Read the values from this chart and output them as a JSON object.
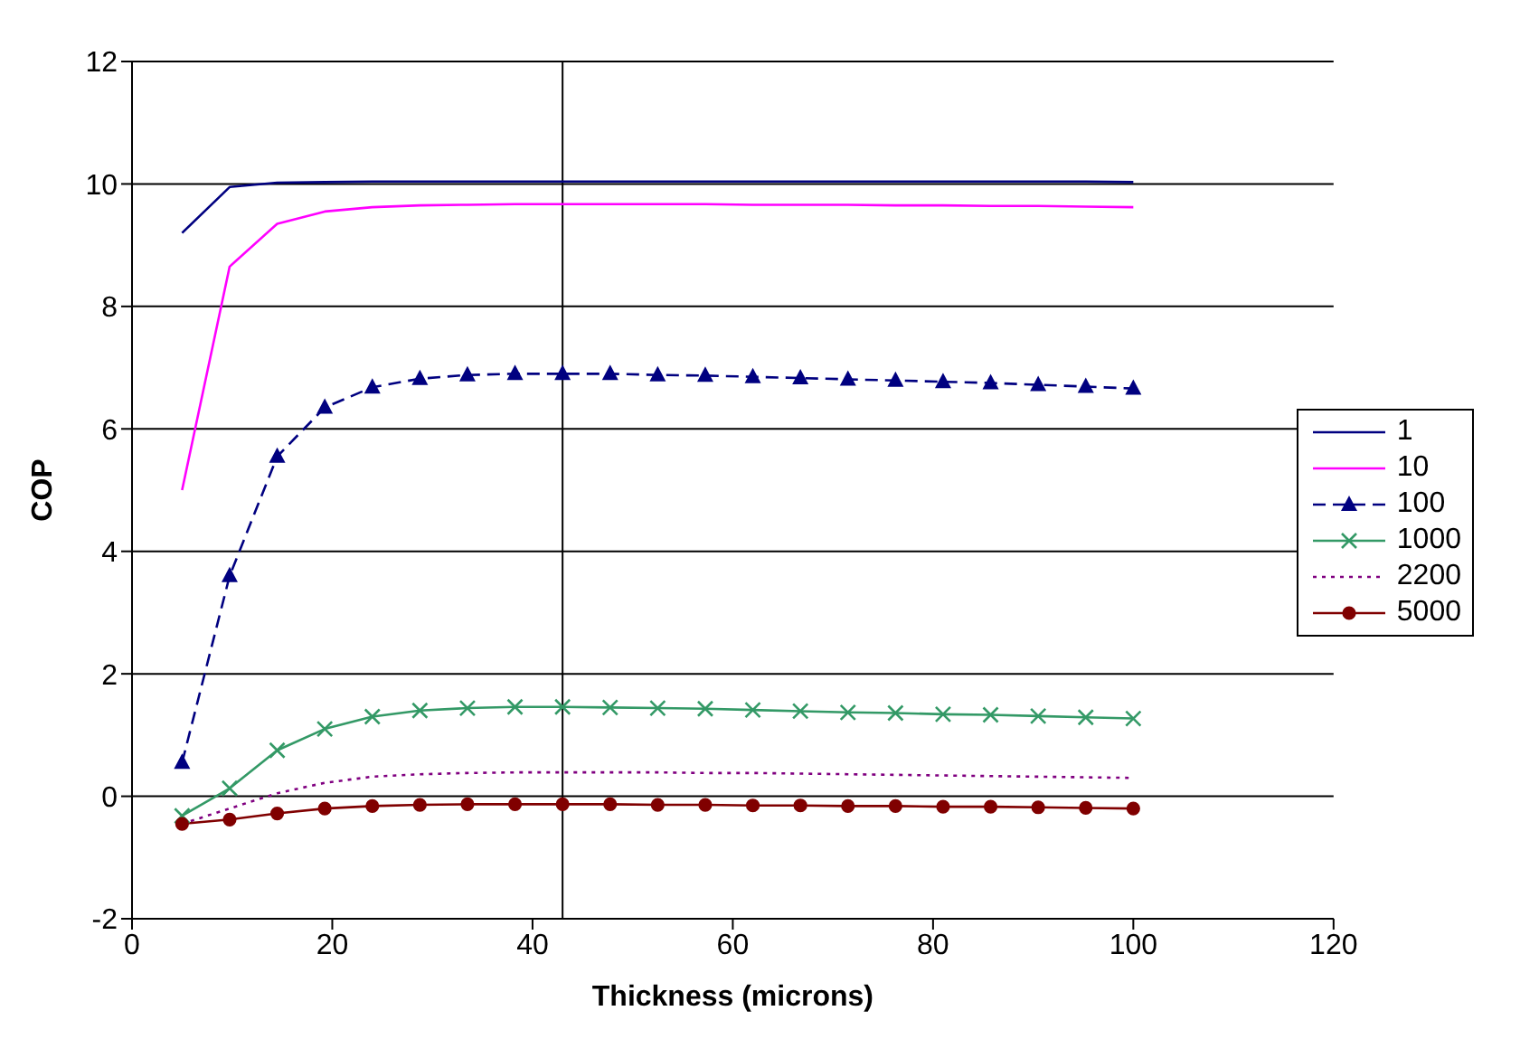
{
  "chart_data": {
    "type": "line",
    "xlabel": "Thickness (microns)",
    "ylabel": "COP",
    "x": [
      5,
      9.75,
      14.5,
      19.25,
      24,
      28.75,
      33.5,
      38.25,
      43,
      47.75,
      52.5,
      57.25,
      62,
      66.75,
      71.5,
      76.25,
      81,
      85.75,
      90.5,
      95.25,
      100
    ],
    "xlim": [
      0,
      120
    ],
    "xticks": [
      0,
      20,
      40,
      60,
      80,
      100,
      120
    ],
    "ylim": [
      -2,
      12
    ],
    "yticks": [
      -2,
      0,
      2,
      4,
      6,
      8,
      10,
      12
    ],
    "grid": "y",
    "legend": "right",
    "ref_lines": [
      {
        "axis": "x",
        "value": 43,
        "color": "#000000"
      }
    ],
    "series": [
      {
        "name": "1",
        "color": "#000080",
        "marker": "none",
        "line_style": "solid",
        "values": [
          9.2,
          9.95,
          10.02,
          10.03,
          10.04,
          10.04,
          10.04,
          10.04,
          10.04,
          10.04,
          10.04,
          10.04,
          10.04,
          10.04,
          10.04,
          10.04,
          10.04,
          10.04,
          10.04,
          10.04,
          10.03
        ]
      },
      {
        "name": "10",
        "color": "#ff00ff",
        "marker": "none",
        "line_style": "solid",
        "values": [
          5.0,
          8.65,
          9.35,
          9.55,
          9.62,
          9.65,
          9.66,
          9.67,
          9.67,
          9.67,
          9.67,
          9.67,
          9.66,
          9.66,
          9.66,
          9.65,
          9.65,
          9.64,
          9.64,
          9.63,
          9.62
        ]
      },
      {
        "name": "100",
        "color": "#000080",
        "marker": "triangle",
        "line_style": "dashed",
        "values": [
          0.55,
          3.6,
          5.55,
          6.35,
          6.68,
          6.82,
          6.88,
          6.9,
          6.9,
          6.9,
          6.88,
          6.87,
          6.85,
          6.83,
          6.81,
          6.79,
          6.77,
          6.75,
          6.72,
          6.69,
          6.66
        ]
      },
      {
        "name": "1000",
        "color": "#339966",
        "marker": "cross",
        "line_style": "solid",
        "values": [
          -0.32,
          0.13,
          0.75,
          1.1,
          1.3,
          1.4,
          1.44,
          1.46,
          1.46,
          1.45,
          1.44,
          1.43,
          1.41,
          1.39,
          1.37,
          1.36,
          1.34,
          1.33,
          1.31,
          1.29,
          1.27
        ]
      },
      {
        "name": "2200",
        "color": "#800080",
        "marker": "none",
        "line_style": "dotted",
        "values": [
          -0.45,
          -0.2,
          0.05,
          0.22,
          0.32,
          0.36,
          0.38,
          0.39,
          0.39,
          0.39,
          0.39,
          0.38,
          0.38,
          0.37,
          0.36,
          0.35,
          0.34,
          0.33,
          0.32,
          0.31,
          0.3
        ]
      },
      {
        "name": "5000",
        "color": "#800000",
        "marker": "circle",
        "line_style": "solid",
        "values": [
          -0.45,
          -0.38,
          -0.28,
          -0.2,
          -0.16,
          -0.14,
          -0.13,
          -0.13,
          -0.13,
          -0.13,
          -0.14,
          -0.14,
          -0.15,
          -0.15,
          -0.16,
          -0.16,
          -0.17,
          -0.17,
          -0.18,
          -0.19,
          -0.2
        ]
      }
    ]
  }
}
